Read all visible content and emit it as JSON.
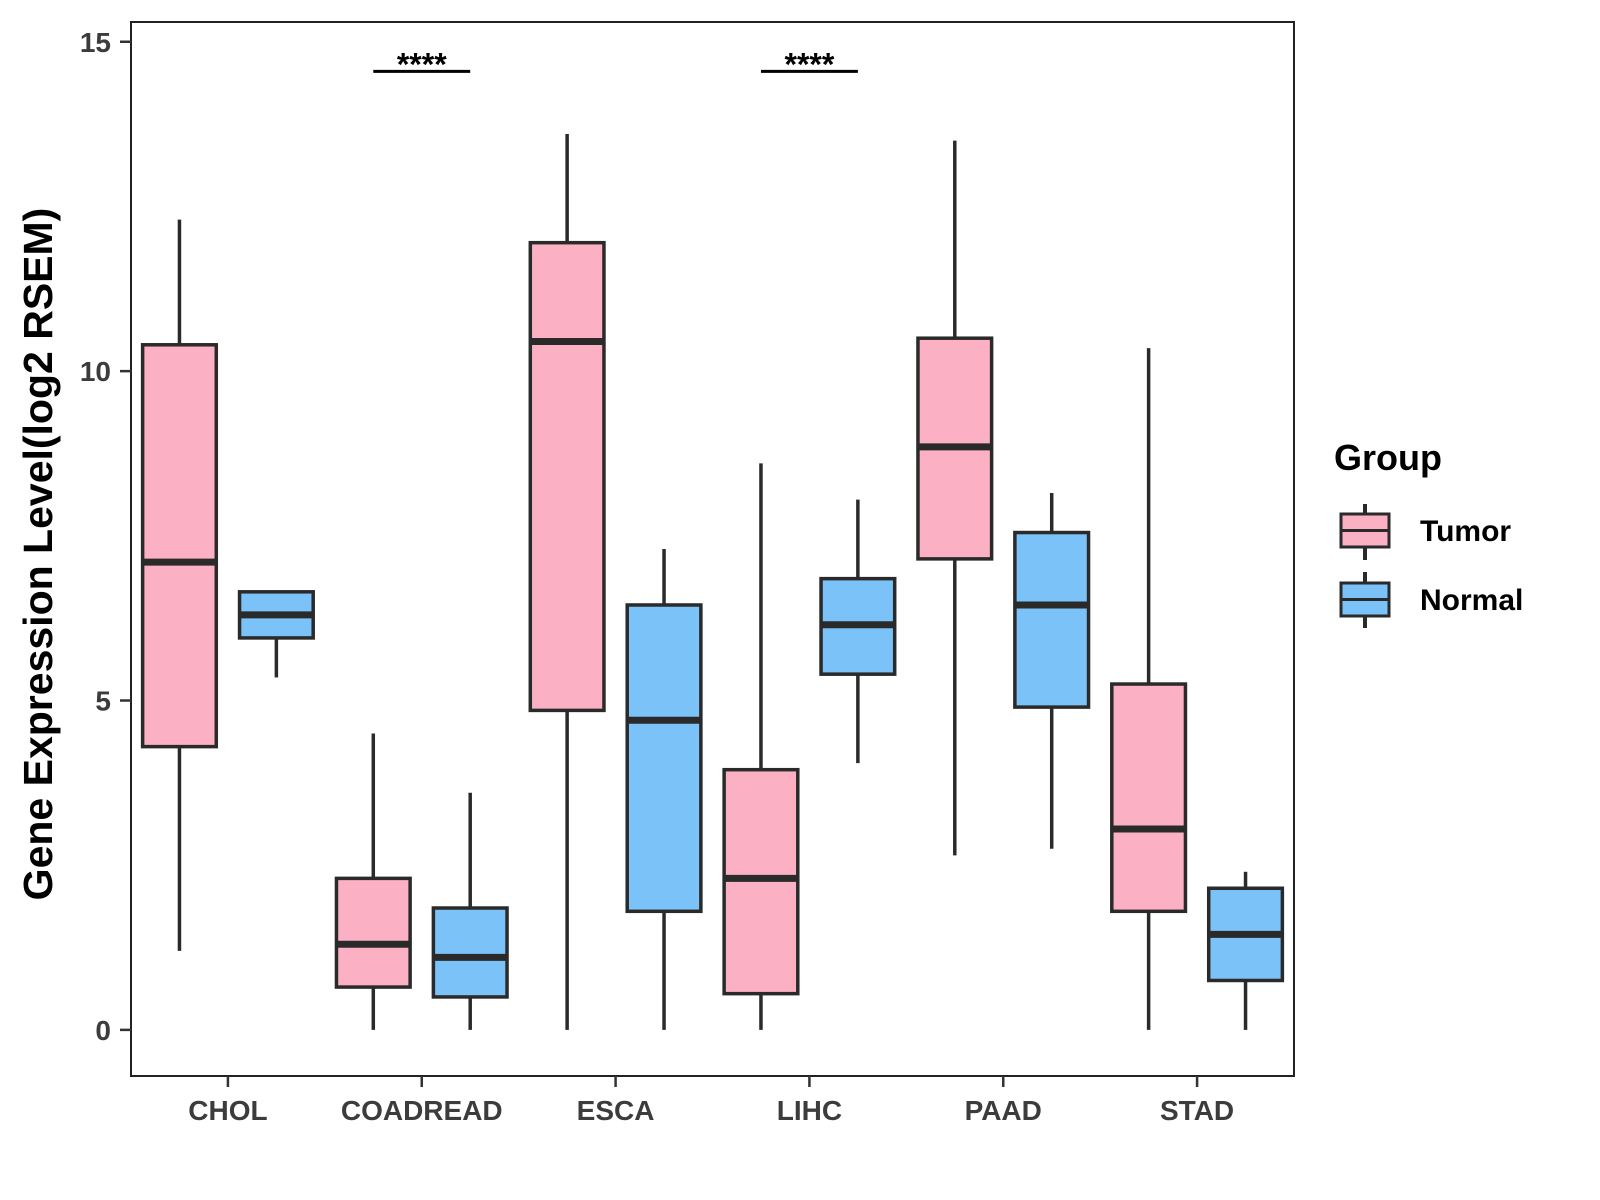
{
  "chart_data": {
    "type": "boxplot",
    "ylabel": "Gene Expression Level(log2 RSEM)",
    "xlabel": "",
    "ylim": [
      -0.7,
      15.3
    ],
    "yticks": [
      0,
      5,
      10,
      15
    ],
    "ytick_labels": [
      "0",
      "5",
      "10",
      "15"
    ],
    "categories": [
      "CHOL",
      "COADREAD",
      "ESCA",
      "LIHC",
      "PAAD",
      "STAD"
    ],
    "series": [
      {
        "name": "Tumor",
        "color": "#FBB1C3",
        "boxes": [
          {
            "category": "CHOL",
            "whisker_low": 1.2,
            "q1": 4.3,
            "median": 7.1,
            "q3": 10.4,
            "whisker_high": 12.3
          },
          {
            "category": "COADREAD",
            "whisker_low": 0.0,
            "q1": 0.65,
            "median": 1.3,
            "q3": 2.3,
            "whisker_high": 4.5
          },
          {
            "category": "ESCA",
            "whisker_low": 0.0,
            "q1": 4.85,
            "median": 10.45,
            "q3": 11.95,
            "whisker_high": 13.6
          },
          {
            "category": "LIHC",
            "whisker_low": 0.0,
            "q1": 0.55,
            "median": 2.3,
            "q3": 3.95,
            "whisker_high": 8.6
          },
          {
            "category": "PAAD",
            "whisker_low": 2.65,
            "q1": 7.15,
            "median": 8.85,
            "q3": 10.5,
            "whisker_high": 13.5
          },
          {
            "category": "STAD",
            "whisker_low": 0.0,
            "q1": 1.8,
            "median": 3.05,
            "q3": 5.25,
            "whisker_high": 10.35
          }
        ]
      },
      {
        "name": "Normal",
        "color": "#7AC2F7",
        "boxes": [
          {
            "category": "CHOL",
            "whisker_low": 5.35,
            "q1": 5.95,
            "median": 6.3,
            "q3": 6.65,
            "whisker_high": 6.65
          },
          {
            "category": "COADREAD",
            "whisker_low": 0.0,
            "q1": 0.5,
            "median": 1.1,
            "q3": 1.85,
            "whisker_high": 3.6
          },
          {
            "category": "ESCA",
            "whisker_low": 0.0,
            "q1": 1.8,
            "median": 4.7,
            "q3": 6.45,
            "whisker_high": 7.3
          },
          {
            "category": "LIHC",
            "whisker_low": 4.05,
            "q1": 5.4,
            "median": 6.15,
            "q3": 6.85,
            "whisker_high": 8.05
          },
          {
            "category": "PAAD",
            "whisker_low": 2.75,
            "q1": 4.9,
            "median": 6.45,
            "q3": 7.55,
            "whisker_high": 8.15
          },
          {
            "category": "STAD",
            "whisker_low": 0.0,
            "q1": 0.75,
            "median": 1.45,
            "q3": 2.15,
            "whisker_high": 2.4
          }
        ]
      }
    ],
    "significance": [
      {
        "category": "COADREAD",
        "label": "****",
        "y": 14.55
      },
      {
        "category": "LIHC",
        "label": "****",
        "y": 14.55
      }
    ],
    "legend": {
      "title": "Group",
      "position": "right",
      "entries": [
        "Tumor",
        "Normal"
      ]
    },
    "grid": false
  }
}
